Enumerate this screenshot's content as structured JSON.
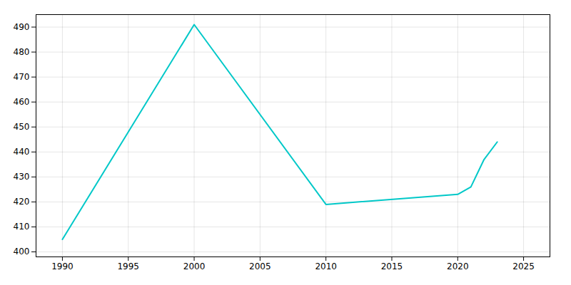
{
  "chart_data": {
    "type": "line",
    "x": [
      1990,
      2000,
      2010,
      2020,
      2021,
      2022,
      2023
    ],
    "values": [
      405,
      491,
      419,
      423,
      426,
      437,
      444
    ],
    "color": "#00C8C8",
    "xlim": [
      1988,
      2027
    ],
    "ylim": [
      398,
      495
    ],
    "xticks": [
      1990,
      1995,
      2000,
      2005,
      2010,
      2015,
      2020,
      2025
    ],
    "yticks": [
      400,
      410,
      420,
      430,
      440,
      450,
      460,
      470,
      480,
      490
    ],
    "grid": true
  }
}
